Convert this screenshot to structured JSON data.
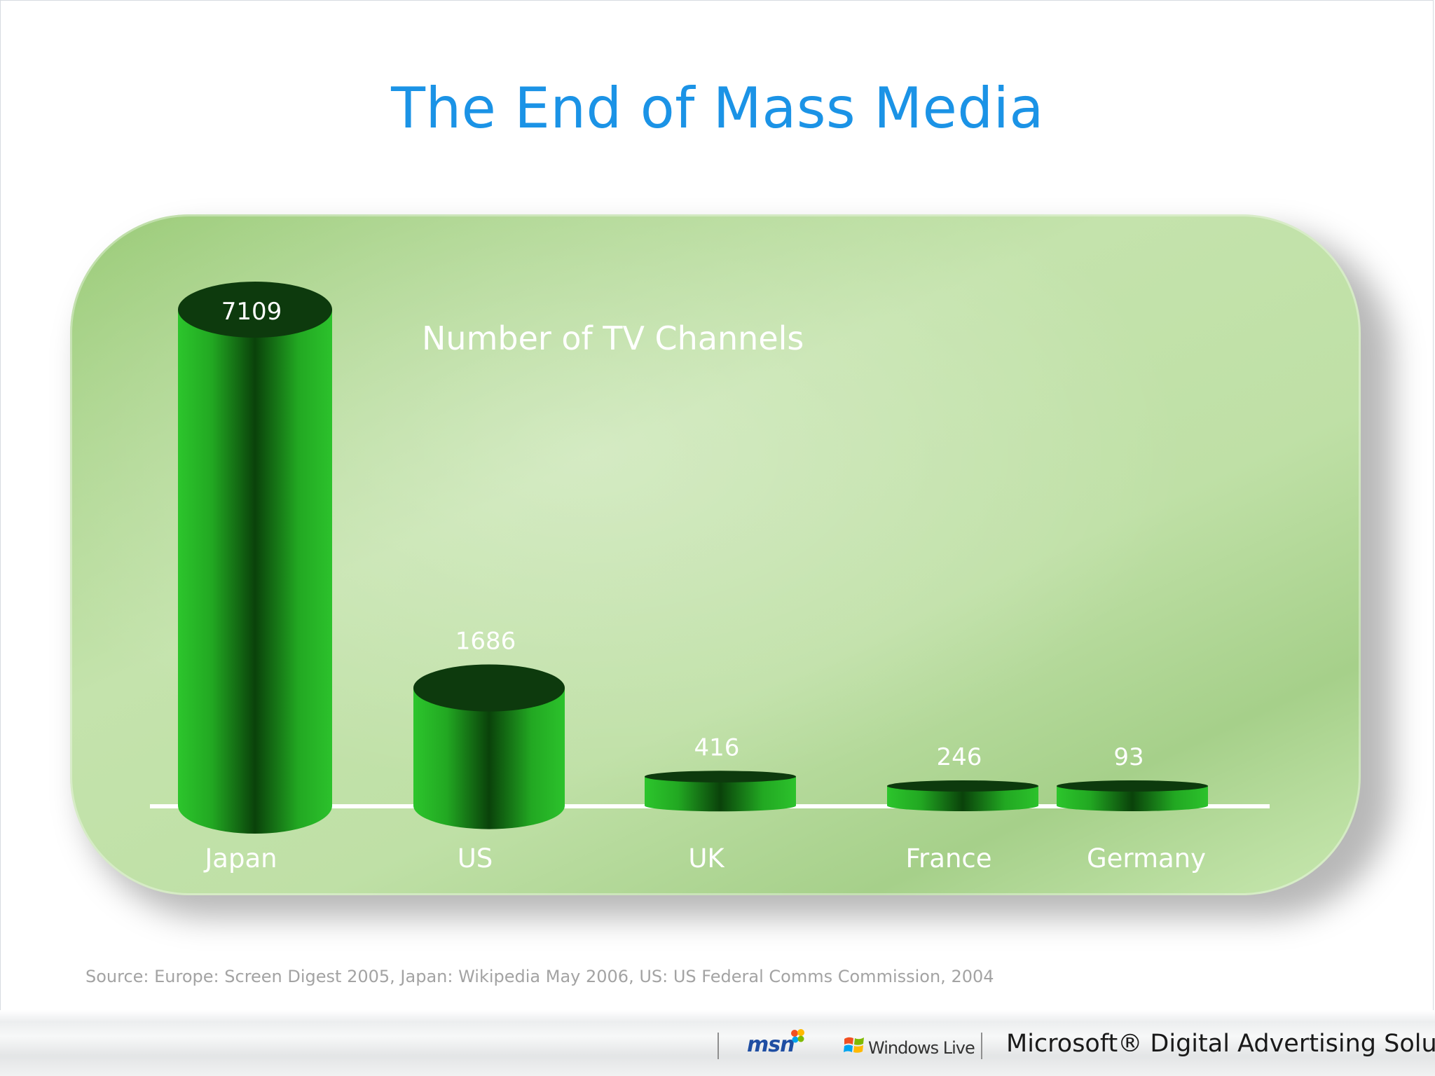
{
  "slide": {
    "title": "The End of Mass Media",
    "source": "Source: Europe: Screen Digest 2005, Japan: Wikipedia May 2006, US: US Federal Comms Commission, 2004"
  },
  "chart_data": {
    "type": "bar",
    "title": "Number of TV Channels",
    "xlabel": "",
    "ylabel": "",
    "categories": [
      "Japan",
      "US",
      "UK",
      "France",
      "Germany"
    ],
    "values": [
      7109,
      1686,
      416,
      246,
      93
    ],
    "data_labels": [
      "7109",
      "1686",
      "416",
      "246",
      "93"
    ],
    "grid": false,
    "legend": "none",
    "bar_style": "3d-cylinder",
    "colors": {
      "bar": "#2bbd2b",
      "bar_dark": "#0a4a0a",
      "bar_top": "#0d3a0d",
      "label_text": "#ffffff",
      "baseline": "#ffffff"
    }
  },
  "footer": {
    "msn": "msn",
    "windows_live": "Windows Live",
    "microsoft_brand": "Microsoft® Digital Advertising Solutions"
  },
  "theme": {
    "title_color": "#1b93e6",
    "panel_green": "#b9dd9e",
    "source_color": "#a3a3a3"
  }
}
